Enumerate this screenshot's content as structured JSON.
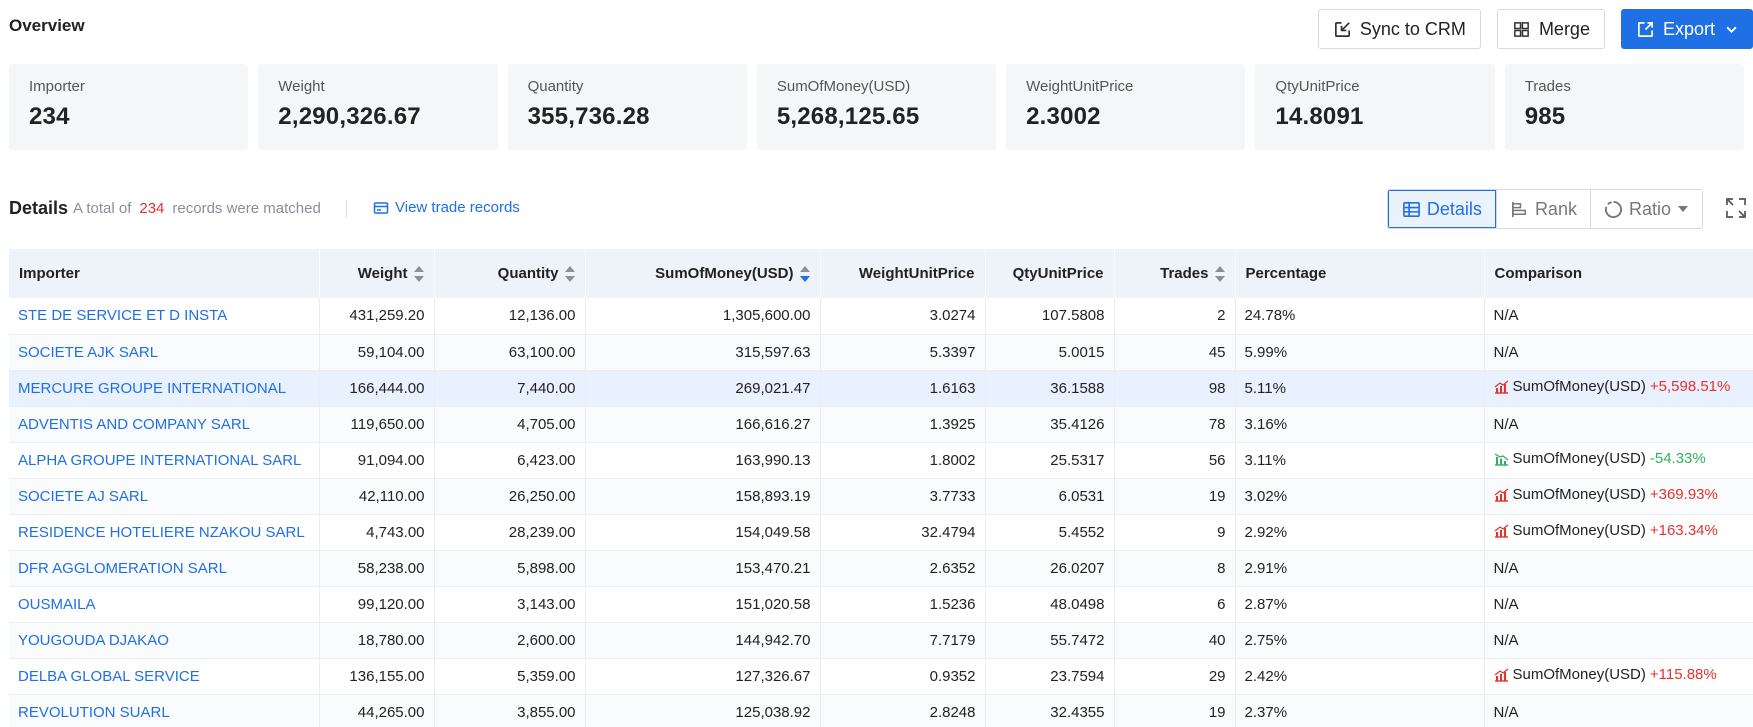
{
  "overview": {
    "title": "Overview",
    "actions": {
      "sync": "Sync to CRM",
      "merge": "Merge",
      "export": "Export"
    },
    "cards": [
      {
        "label": "Importer",
        "value": "234"
      },
      {
        "label": "Weight",
        "value": "2,290,326.67"
      },
      {
        "label": "Quantity",
        "value": "355,736.28"
      },
      {
        "label": "SumOfMoney(USD)",
        "value": "5,268,125.65"
      },
      {
        "label": "WeightUnitPrice",
        "value": "2.3002"
      },
      {
        "label": "QtyUnitPrice",
        "value": "14.8091"
      },
      {
        "label": "Trades",
        "value": "985"
      }
    ]
  },
  "details": {
    "title": "Details",
    "note_prefix": "A total of",
    "count": "234",
    "note_suffix": "records were matched",
    "view_link": "View trade records",
    "views": {
      "details": "Details",
      "rank": "Rank",
      "ratio": "Ratio"
    }
  },
  "table": {
    "headers": {
      "importer": "Importer",
      "weight": "Weight",
      "quantity": "Quantity",
      "money": "SumOfMoney(USD)",
      "wup": "WeightUnitPrice",
      "qup": "QtyUnitPrice",
      "trades": "Trades",
      "pct": "Percentage",
      "cmp": "Comparison"
    },
    "rows": [
      {
        "importer": "STE DE SERVICE ET D INSTA",
        "weight": "431,259.20",
        "quantity": "12,136.00",
        "money": "1,305,600.00",
        "wup": "3.0274",
        "qup": "107.5808",
        "trades": "2",
        "pct": "24.78%",
        "cmp_na": "N/A",
        "cmp_metric": "",
        "cmp_delta": "",
        "cmp_dir": ""
      },
      {
        "importer": "SOCIETE AJK SARL",
        "weight": "59,104.00",
        "quantity": "63,100.00",
        "money": "315,597.63",
        "wup": "5.3397",
        "qup": "5.0015",
        "trades": "45",
        "pct": "5.99%",
        "cmp_na": "N/A",
        "cmp_metric": "",
        "cmp_delta": "",
        "cmp_dir": ""
      },
      {
        "importer": "MERCURE GROUPE INTERNATIONAL",
        "weight": "166,444.00",
        "quantity": "7,440.00",
        "money": "269,021.47",
        "wup": "1.6163",
        "qup": "36.1588",
        "trades": "98",
        "pct": "5.11%",
        "cmp_na": "",
        "cmp_metric": "SumOfMoney(USD)",
        "cmp_delta": "+5,598.51%",
        "cmp_dir": "up"
      },
      {
        "importer": "ADVENTIS AND COMPANY SARL",
        "weight": "119,650.00",
        "quantity": "4,705.00",
        "money": "166,616.27",
        "wup": "1.3925",
        "qup": "35.4126",
        "trades": "78",
        "pct": "3.16%",
        "cmp_na": "N/A",
        "cmp_metric": "",
        "cmp_delta": "",
        "cmp_dir": ""
      },
      {
        "importer": "ALPHA GROUPE INTERNATIONAL SARL",
        "weight": "91,094.00",
        "quantity": "6,423.00",
        "money": "163,990.13",
        "wup": "1.8002",
        "qup": "25.5317",
        "trades": "56",
        "pct": "3.11%",
        "cmp_na": "",
        "cmp_metric": "SumOfMoney(USD)",
        "cmp_delta": "-54.33%",
        "cmp_dir": "down"
      },
      {
        "importer": "SOCIETE AJ SARL",
        "weight": "42,110.00",
        "quantity": "26,250.00",
        "money": "158,893.19",
        "wup": "3.7733",
        "qup": "6.0531",
        "trades": "19",
        "pct": "3.02%",
        "cmp_na": "",
        "cmp_metric": "SumOfMoney(USD)",
        "cmp_delta": "+369.93%",
        "cmp_dir": "up"
      },
      {
        "importer": "RESIDENCE HOTELIERE NZAKOU SARL",
        "weight": "4,743.00",
        "quantity": "28,239.00",
        "money": "154,049.58",
        "wup": "32.4794",
        "qup": "5.4552",
        "trades": "9",
        "pct": "2.92%",
        "cmp_na": "",
        "cmp_metric": "SumOfMoney(USD)",
        "cmp_delta": "+163.34%",
        "cmp_dir": "up"
      },
      {
        "importer": "DFR AGGLOMERATION SARL",
        "weight": "58,238.00",
        "quantity": "5,898.00",
        "money": "153,470.21",
        "wup": "2.6352",
        "qup": "26.0207",
        "trades": "8",
        "pct": "2.91%",
        "cmp_na": "N/A",
        "cmp_metric": "",
        "cmp_delta": "",
        "cmp_dir": ""
      },
      {
        "importer": "OUSMAILA",
        "weight": "99,120.00",
        "quantity": "3,143.00",
        "money": "151,020.58",
        "wup": "1.5236",
        "qup": "48.0498",
        "trades": "6",
        "pct": "2.87%",
        "cmp_na": "N/A",
        "cmp_metric": "",
        "cmp_delta": "",
        "cmp_dir": ""
      },
      {
        "importer": "YOUGOUDA DJAKAO",
        "weight": "18,780.00",
        "quantity": "2,600.00",
        "money": "144,942.70",
        "wup": "7.7179",
        "qup": "55.7472",
        "trades": "40",
        "pct": "2.75%",
        "cmp_na": "N/A",
        "cmp_metric": "",
        "cmp_delta": "",
        "cmp_dir": ""
      },
      {
        "importer": "DELBA GLOBAL SERVICE",
        "weight": "136,155.00",
        "quantity": "5,359.00",
        "money": "127,326.67",
        "wup": "0.9352",
        "qup": "23.7594",
        "trades": "29",
        "pct": "2.42%",
        "cmp_na": "",
        "cmp_metric": "SumOfMoney(USD)",
        "cmp_delta": "+115.88%",
        "cmp_dir": "up"
      },
      {
        "importer": "REVOLUTION SUARL",
        "weight": "44,265.00",
        "quantity": "3,855.00",
        "money": "125,038.92",
        "wup": "2.8248",
        "qup": "32.4355",
        "trades": "19",
        "pct": "2.37%",
        "cmp_na": "N/A",
        "cmp_metric": "",
        "cmp_delta": "",
        "cmp_dir": ""
      }
    ],
    "highlighted_row": 2
  },
  "colors": {
    "accent": "#1f6fe5",
    "up": "#e5322d",
    "down": "#2fb25a",
    "count": "#e5322d"
  }
}
